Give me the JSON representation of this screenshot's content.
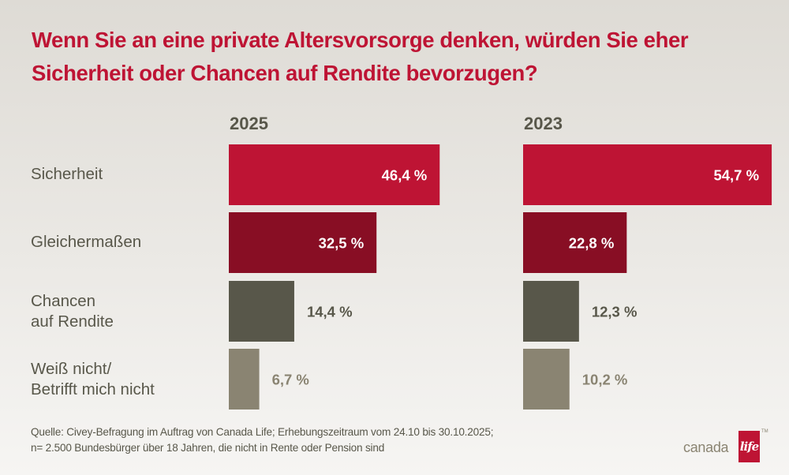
{
  "chart_data": {
    "type": "bar",
    "orientation": "horizontal",
    "title": "Wenn Sie an eine private Altersvorsorge denken, würden Sie eher Sicherheit oder Chancen auf Rendite bevorzugen?",
    "categories": [
      "Sicherheit",
      "Gleichermaßen",
      "Chancen\nauf Rendite",
      "Weiß nicht/\nBetrifft mich nicht"
    ],
    "series": [
      {
        "name": "2025",
        "values": [
          46.4,
          32.5,
          14.4,
          6.7
        ],
        "labels": [
          "46,4 %",
          "32,5 %",
          "14,4 %",
          "6,7 %"
        ]
      },
      {
        "name": "2023",
        "values": [
          54.7,
          22.8,
          12.3,
          10.2
        ],
        "labels": [
          "54,7 %",
          "22,8 %",
          "12,3 %",
          "10,2 %"
        ]
      }
    ],
    "unit": "%",
    "xlim": [
      0,
      60
    ],
    "grid": false,
    "colors": [
      "#be1434",
      "#880e24",
      "#58574a",
      "#8a8472"
    ],
    "label_colors_outside": [
      "#58574a",
      "#58574a",
      "#58574a",
      "#8a8472"
    ]
  },
  "source": {
    "line1": "Quelle: Civey-Befragung im Auftrag von Canada Life; Erhebungszeitraum vom 24.10 bis 30.10.2025;",
    "line2": "n= 2.500 Bundesbürger über 18 Jahren, die nicht in Rente oder Pension sind"
  },
  "logo": {
    "word": "canada",
    "box": "life",
    "tm": "TM"
  }
}
